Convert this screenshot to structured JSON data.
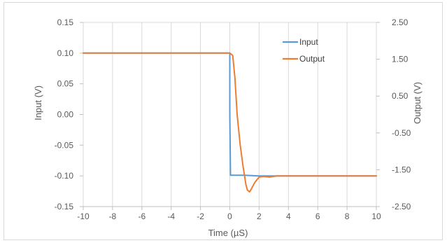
{
  "chart_data": {
    "type": "line",
    "xlabel": "Time (µS)",
    "ylabel_left": "Input (V)",
    "ylabel_right": "Output (V)",
    "xlim": [
      -10,
      10
    ],
    "xticks": [
      -10,
      -8,
      -6,
      -4,
      -2,
      0,
      2,
      4,
      6,
      8,
      10
    ],
    "ylim_left": [
      -0.15,
      0.15
    ],
    "yticks_left": [
      "0.15",
      "0.10",
      "0.05",
      "0.00",
      "-0.05",
      "-0.10",
      "-0.15"
    ],
    "ylim_right": [
      -2.5,
      2.5
    ],
    "yticks_right": [
      "2.50",
      "1.50",
      "0.50",
      "-0.50",
      "-1.50",
      "-2.50"
    ],
    "grid": "vertical",
    "legend_position": "top-right",
    "series": [
      {
        "name": "Input",
        "axis": "left",
        "color": "#5b9bd5",
        "x": [
          -10,
          0,
          0,
          0.05,
          1,
          2,
          4,
          6,
          8,
          10
        ],
        "y": [
          0.1,
          0.1,
          0.0,
          -0.099,
          -0.099,
          -0.1,
          -0.1,
          -0.1,
          -0.1,
          -0.1
        ]
      },
      {
        "name": "Output",
        "axis": "right",
        "color": "#ed7d31",
        "x": [
          -10,
          0,
          0.2,
          0.35,
          0.5,
          0.7,
          0.9,
          1.1,
          1.2,
          1.35,
          1.5,
          1.7,
          2.0,
          2.3,
          2.7,
          3.2,
          4,
          6,
          8,
          10
        ],
        "y": [
          1.67,
          1.67,
          1.6,
          1.0,
          0.0,
          -0.8,
          -1.4,
          -1.9,
          -2.05,
          -2.1,
          -2.0,
          -1.85,
          -1.7,
          -1.68,
          -1.7,
          -1.67,
          -1.67,
          -1.67,
          -1.67,
          -1.67
        ]
      }
    ]
  }
}
